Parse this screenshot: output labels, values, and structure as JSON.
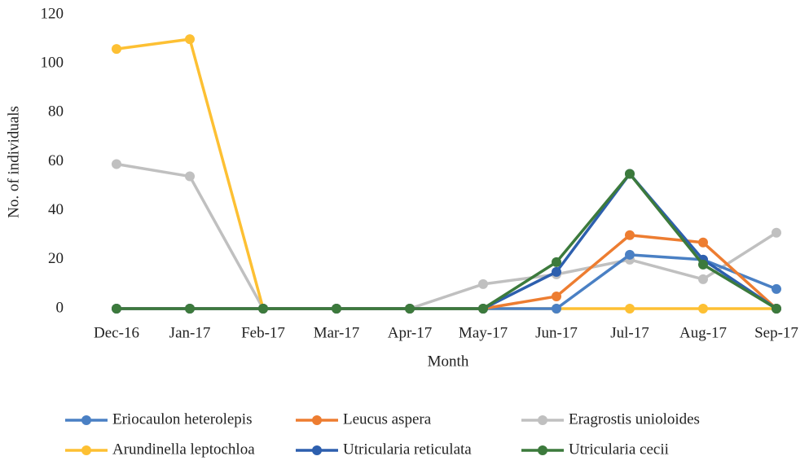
{
  "chart_data": {
    "type": "line",
    "x_label": "Month",
    "y_label": "No. of individuals",
    "categories": [
      "Dec-16",
      "Jan-17",
      "Feb-17",
      "Mar-17",
      "Apr-17",
      "May-17",
      "Jun-17",
      "Jul-17",
      "Aug-17",
      "Sep-17"
    ],
    "series": [
      {
        "name": "Eriocaulon heterolepis",
        "color": "#4a80c4",
        "values": [
          0,
          0,
          0,
          0,
          0,
          0,
          0,
          22,
          20,
          8
        ]
      },
      {
        "name": "Leucus aspera",
        "color": "#ed7d31",
        "values": [
          0,
          0,
          0,
          0,
          0,
          0,
          5,
          30,
          27,
          0
        ]
      },
      {
        "name": "Eragrostis unioloides",
        "color": "#c0c0c0",
        "values": [
          59,
          54,
          0,
          0,
          0,
          10,
          14,
          20,
          12,
          31
        ]
      },
      {
        "name": "Arundinella leptochloa",
        "color": "#fdc033",
        "values": [
          106,
          110,
          0,
          0,
          0,
          0,
          0,
          0,
          0,
          0
        ]
      },
      {
        "name": "Utricularia reticulata",
        "color": "#2d5fae",
        "values": [
          0,
          0,
          0,
          0,
          0,
          0,
          15,
          55,
          20,
          0
        ]
      },
      {
        "name": "Utricularia cecii",
        "color": "#3c7a3c",
        "values": [
          0,
          0,
          0,
          0,
          0,
          0,
          19,
          55,
          18,
          0
        ]
      }
    ],
    "ylim": [
      0,
      120
    ],
    "yticks": [
      0,
      20,
      40,
      60,
      80,
      100,
      120
    ],
    "grid": false
  }
}
